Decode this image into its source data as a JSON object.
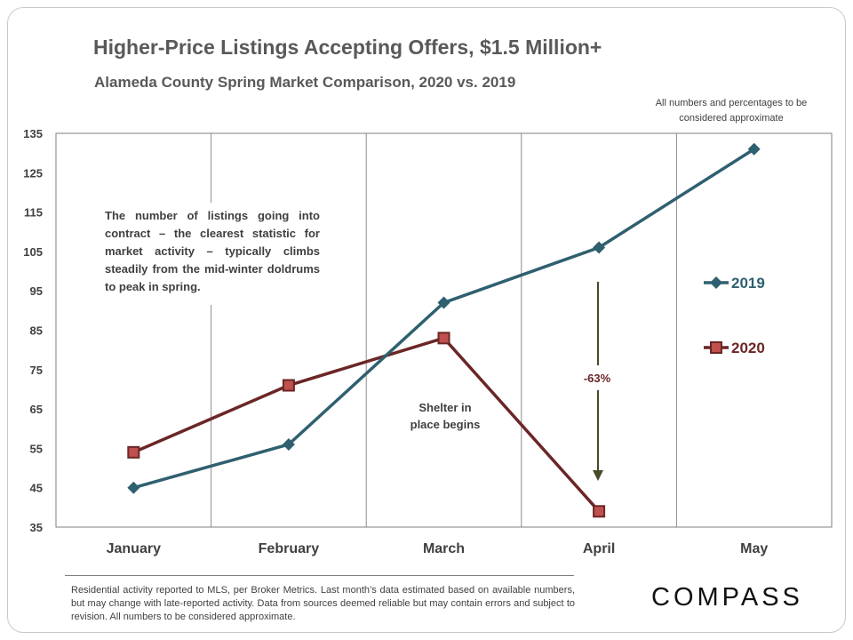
{
  "header": {
    "title": "Higher-Price Listings Accepting Offers, $1.5 Million+",
    "subtitle": "Alameda County Spring Market Comparison,  2020 vs. 2019",
    "note": "All numbers and percentages to be considered approximate"
  },
  "chart_data": {
    "type": "line",
    "categories": [
      "January",
      "February",
      "March",
      "April",
      "May"
    ],
    "ylim": [
      35,
      135
    ],
    "yticks": [
      35,
      45,
      55,
      65,
      75,
      85,
      95,
      105,
      115,
      125,
      135
    ],
    "grid": "vertical",
    "legend_position": "right",
    "series": [
      {
        "name": "2019",
        "color": "#2f6070",
        "marker": "diamond",
        "values": [
          45,
          56,
          92,
          106,
          131
        ]
      },
      {
        "name": "2020",
        "color": "#6b2626",
        "marker": "square",
        "values": [
          54,
          71,
          83,
          39,
          null
        ]
      }
    ],
    "annotations": {
      "description": "The number of listings going into contract – the clearest statistic for market activity – typically climbs steadily from the mid-winter doldrums to peak in spring.",
      "shelter_line1": "Shelter in",
      "shelter_line2": "place  begins",
      "change_label": "-63%"
    }
  },
  "footer": {
    "disclaimer": "Residential activity reported to MLS, per Broker Metrics. Last month’s data estimated based on available numbers, but may change with late-reported activity. Data from sources deemed reliable but may contain errors and subject to revision. All numbers to be considered approximate.",
    "brand": "COMPASS"
  },
  "colors": {
    "series_2019": "#2f6070",
    "series_2020": "#6b2626",
    "arrow": "#4a4a2a",
    "text": "#595959"
  }
}
